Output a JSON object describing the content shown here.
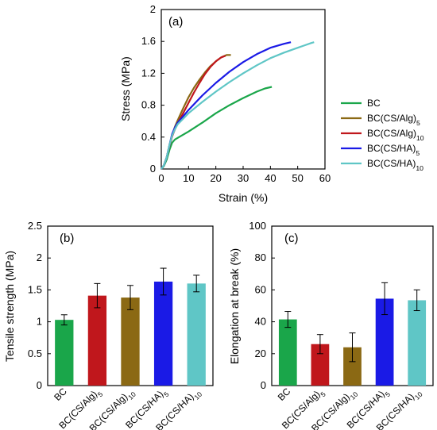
{
  "chart_data": [
    {
      "type": "line",
      "panel": "(a)",
      "xlabel": "Strain (%)",
      "ylabel": "Stress (MPa)",
      "xlim": [
        0,
        60
      ],
      "ylim": [
        0,
        2
      ],
      "xticks": [
        0,
        10,
        20,
        30,
        40,
        50,
        60
      ],
      "yticks": [
        0,
        0.4,
        0.8,
        1.2,
        1.6,
        2
      ],
      "legend_position": "right",
      "series": [
        {
          "name": "BC",
          "color": "#1aa64a",
          "x": [
            0,
            1,
            2,
            3,
            4,
            5,
            7,
            10,
            15,
            20,
            25,
            30,
            35,
            38,
            40.5
          ],
          "y": [
            0,
            0.04,
            0.12,
            0.24,
            0.33,
            0.37,
            0.41,
            0.47,
            0.58,
            0.7,
            0.8,
            0.89,
            0.97,
            1.01,
            1.03
          ]
        },
        {
          "name": "BC(CS/Alg)5",
          "color": "#8b6914",
          "x": [
            0,
            1,
            2,
            3,
            4,
            5,
            6,
            8,
            10,
            12,
            14,
            16,
            18,
            20,
            22,
            24,
            25.5
          ],
          "y": [
            0,
            0.05,
            0.15,
            0.3,
            0.43,
            0.53,
            0.61,
            0.76,
            0.9,
            1.02,
            1.12,
            1.21,
            1.29,
            1.35,
            1.4,
            1.43,
            1.43
          ]
        },
        {
          "name": "BC(CS/Alg)10",
          "color": "#c0171c",
          "x": [
            0,
            1,
            2,
            3,
            4,
            5,
            6,
            8,
            10,
            12,
            14,
            16,
            18,
            20,
            22,
            23.5
          ],
          "y": [
            0,
            0.05,
            0.15,
            0.29,
            0.41,
            0.5,
            0.57,
            0.7,
            0.83,
            0.96,
            1.08,
            1.19,
            1.28,
            1.35,
            1.4,
            1.42
          ]
        },
        {
          "name": "BC(CS/HA)5",
          "color": "#1a1ae6",
          "x": [
            0,
            1,
            2,
            3,
            4,
            5,
            6,
            8,
            10,
            15,
            20,
            25,
            30,
            35,
            40,
            45,
            47.5
          ],
          "y": [
            0,
            0.05,
            0.15,
            0.3,
            0.44,
            0.52,
            0.58,
            0.66,
            0.74,
            0.92,
            1.08,
            1.22,
            1.34,
            1.44,
            1.52,
            1.57,
            1.59
          ]
        },
        {
          "name": "BC(CS/HA)10",
          "color": "#5fc6c6",
          "x": [
            0,
            1,
            2,
            3,
            4,
            5,
            6,
            8,
            10,
            15,
            20,
            25,
            30,
            35,
            40,
            45,
            50,
            55,
            56
          ],
          "y": [
            0,
            0.05,
            0.15,
            0.3,
            0.42,
            0.5,
            0.56,
            0.63,
            0.7,
            0.84,
            0.97,
            1.09,
            1.2,
            1.3,
            1.39,
            1.46,
            1.52,
            1.58,
            1.59
          ]
        }
      ]
    },
    {
      "type": "bar",
      "panel": "(b)",
      "ylabel": "Tensile strength (MPa)",
      "ylim": [
        0,
        2.5
      ],
      "yticks": [
        "0",
        "0.5",
        "1",
        "1.5",
        "2",
        "2.5"
      ],
      "categories": [
        "BC",
        "BC(CS/Alg)5",
        "BC(CS/Alg)10",
        "BC(CS/HA)5",
        "BC(CS/HA)10"
      ],
      "values": [
        1.03,
        1.41,
        1.38,
        1.63,
        1.6
      ],
      "errors": [
        0.08,
        0.19,
        0.19,
        0.21,
        0.13
      ],
      "colors": [
        "#1aa64a",
        "#c0171c",
        "#8b6914",
        "#1a1ae6",
        "#5fc6c6"
      ]
    },
    {
      "type": "bar",
      "panel": "(c)",
      "ylabel": "Elongation at break (%)",
      "ylim": [
        0,
        100
      ],
      "yticks": [
        "0",
        "20",
        "40",
        "60",
        "80",
        "100"
      ],
      "categories": [
        "BC",
        "BC(CS/Alg)5",
        "BC(CS/Alg)10",
        "BC(CS/HA)5",
        "BC(CS/HA)10"
      ],
      "values": [
        41.5,
        26,
        24,
        54.5,
        53.5
      ],
      "errors": [
        5,
        6,
        9,
        10,
        6.5
      ],
      "colors": [
        "#1aa64a",
        "#c0171c",
        "#8b6914",
        "#1a1ae6",
        "#5fc6c6"
      ]
    }
  ]
}
